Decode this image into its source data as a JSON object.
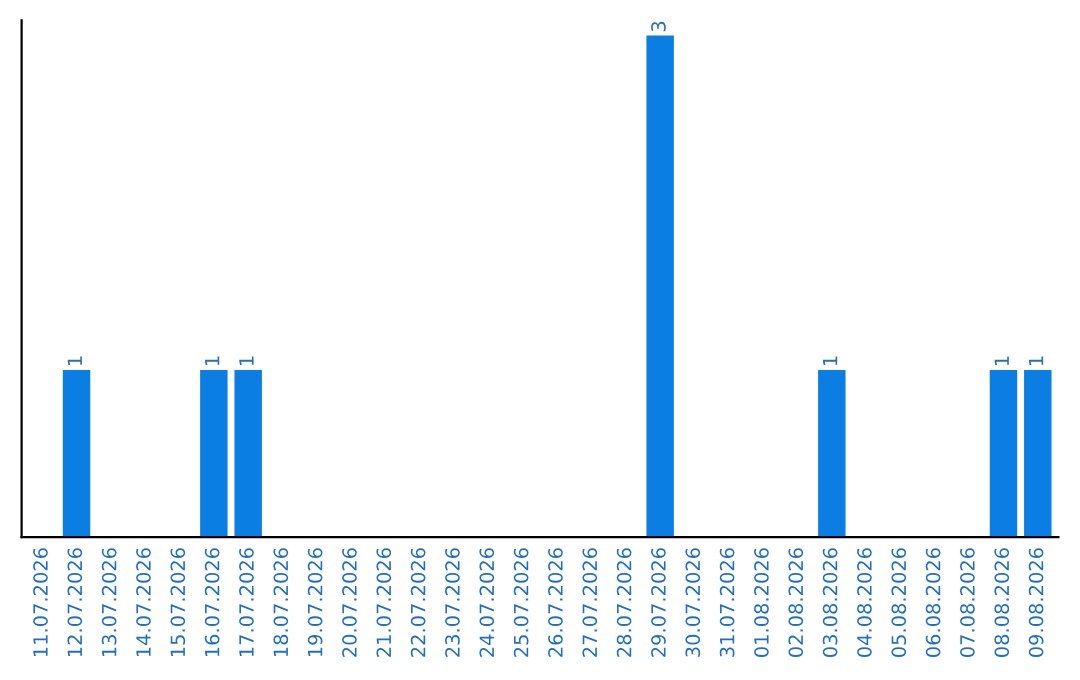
{
  "chart_data": {
    "type": "bar",
    "categories": [
      "11.07.2026",
      "12.07.2026",
      "13.07.2026",
      "14.07.2026",
      "15.07.2026",
      "16.07.2026",
      "17.07.2026",
      "18.07.2026",
      "19.07.2026",
      "20.07.2026",
      "21.07.2026",
      "22.07.2026",
      "23.07.2026",
      "24.07.2026",
      "25.07.2026",
      "26.07.2026",
      "27.07.2026",
      "28.07.2026",
      "29.07.2026",
      "30.07.2026",
      "31.07.2026",
      "01.08.2026",
      "02.08.2026",
      "03.08.2026",
      "04.08.2026",
      "05.08.2026",
      "06.08.2026",
      "07.08.2026",
      "08.08.2026",
      "09.08.2026"
    ],
    "values": [
      0,
      1,
      0,
      0,
      0,
      1,
      1,
      0,
      0,
      0,
      0,
      0,
      0,
      0,
      0,
      0,
      0,
      0,
      3,
      0,
      0,
      0,
      0,
      1,
      0,
      0,
      0,
      0,
      1,
      1
    ],
    "value_labels": [
      null,
      "1",
      null,
      null,
      null,
      "1",
      "1",
      null,
      null,
      null,
      null,
      null,
      null,
      null,
      null,
      null,
      null,
      null,
      "3",
      null,
      null,
      null,
      null,
      "1",
      null,
      null,
      null,
      null,
      "1",
      "1"
    ],
    "color": "#0a7ee3",
    "tick_labels": "x",
    "grid": false,
    "legend": false
  }
}
